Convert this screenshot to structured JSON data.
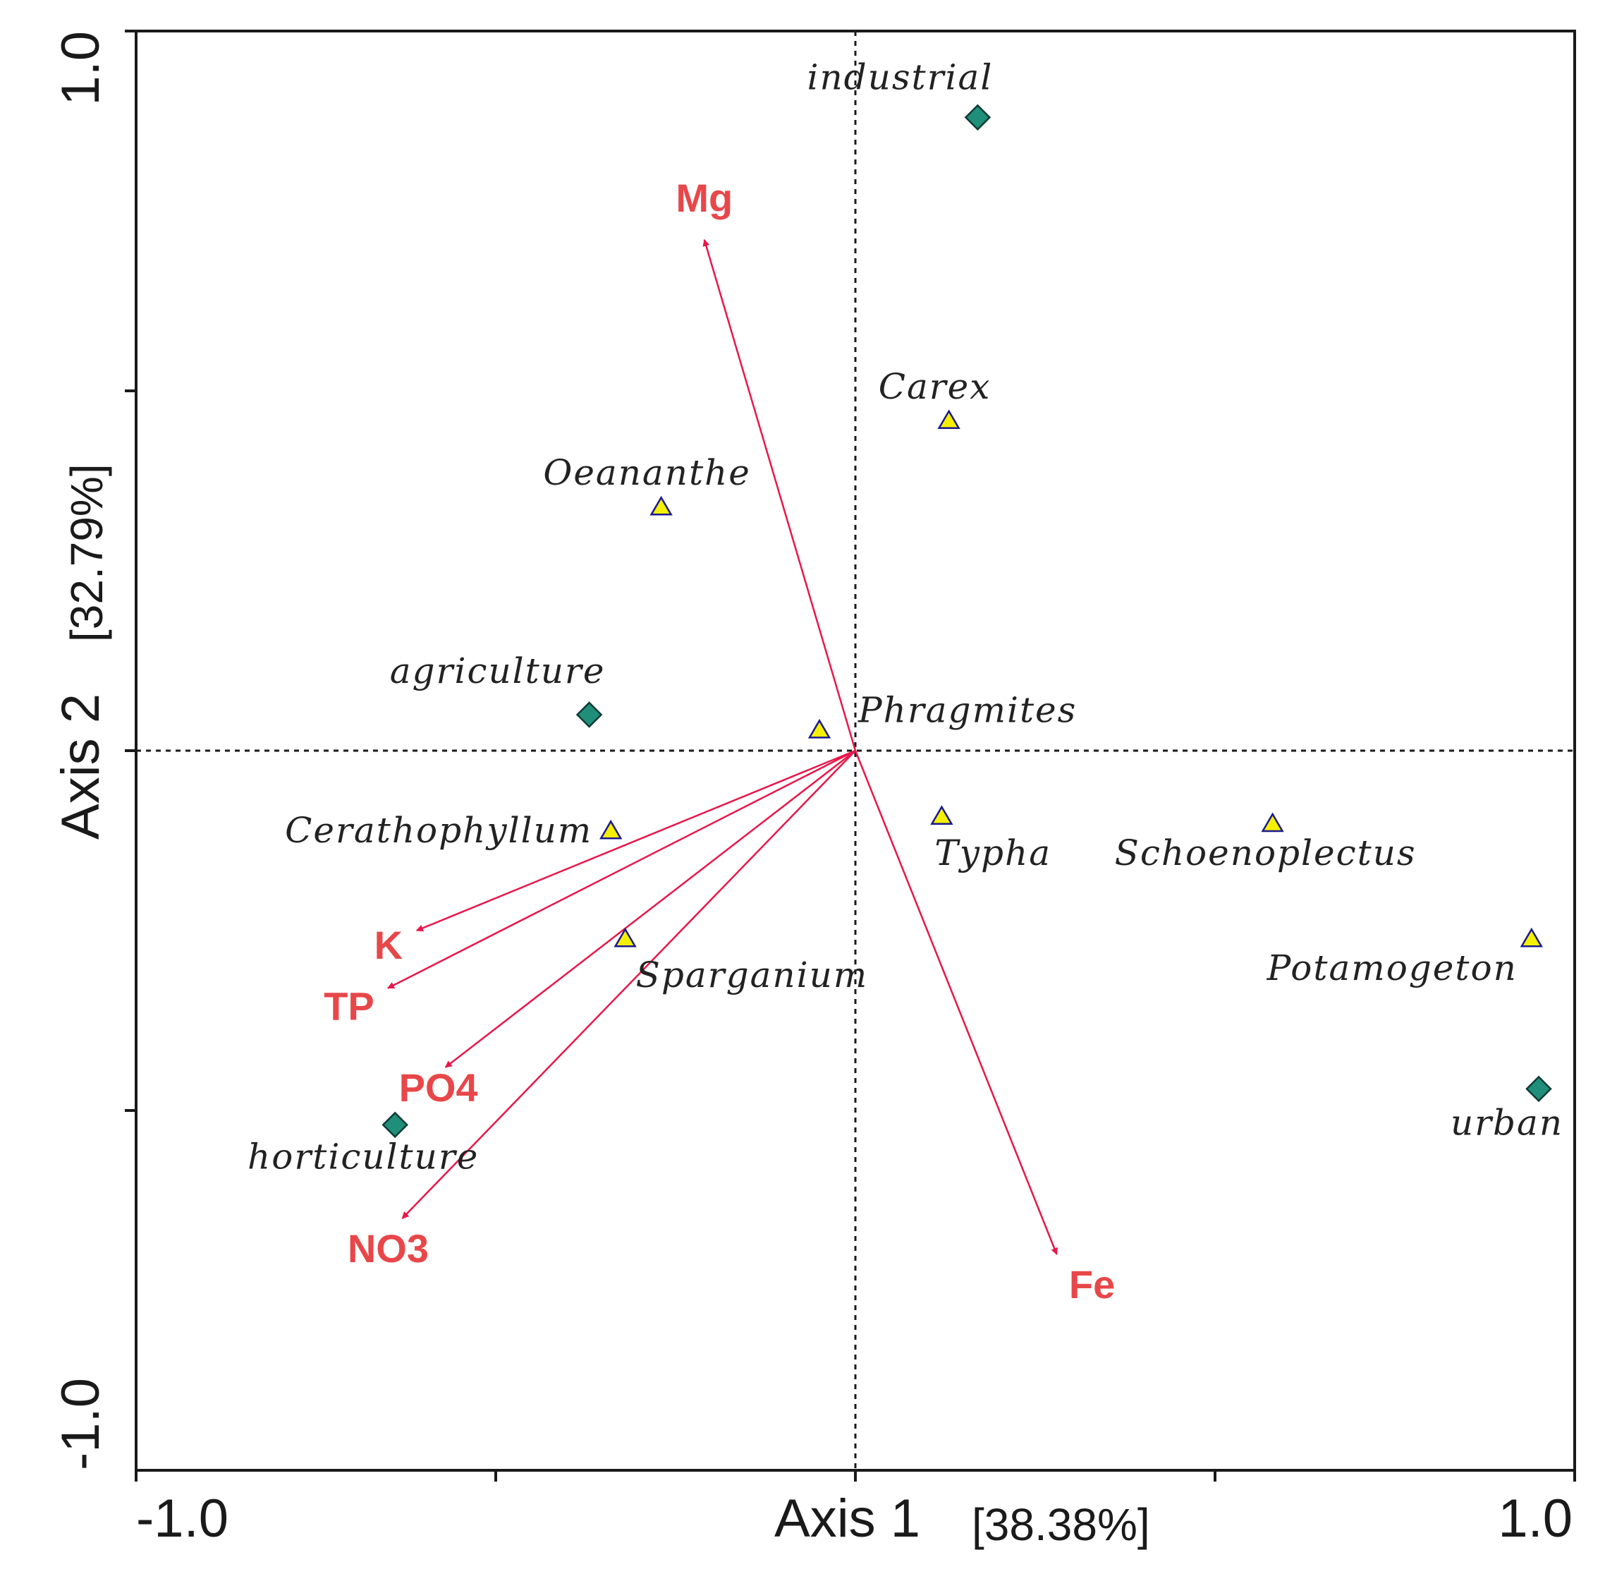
{
  "chart_data": {
    "type": "scatter",
    "subtype": "ordination-biplot",
    "xlabel": "Axis 1",
    "xlabel_pct": "[38.38%]",
    "ylabel": "Axis 2",
    "ylabel_pct": "[32.79%]",
    "xlim": [
      -1.0,
      1.0
    ],
    "ylim": [
      -1.0,
      1.0
    ],
    "x_tick_labels": [
      "-1.0",
      "1.0"
    ],
    "y_tick_labels": [
      "1.0",
      "-1.0"
    ],
    "zero_lines": "dashed",
    "colors": {
      "vector": "#e8174a",
      "vector_label": "#e8474a",
      "species_fill": "#f5f000",
      "species_stroke": "#1a1a8c",
      "landuse_fill": "#1f8f7a",
      "landuse_stroke": "#0d3b33",
      "axis": "#1a1a1a"
    },
    "species": [
      {
        "name": "Carex",
        "x": 0.13,
        "y": 0.46
      },
      {
        "name": "Oeananthe",
        "x": -0.27,
        "y": 0.34
      },
      {
        "name": "Phragmites",
        "x": -0.05,
        "y": 0.03
      },
      {
        "name": "Cerathophyllum",
        "x": -0.34,
        "y": -0.11
      },
      {
        "name": "Typha",
        "x": 0.12,
        "y": -0.09
      },
      {
        "name": "Schoenoplectus",
        "x": 0.58,
        "y": -0.1
      },
      {
        "name": "Sparganium",
        "x": -0.32,
        "y": -0.26
      },
      {
        "name": "Potamogeton",
        "x": 0.94,
        "y": -0.26
      }
    ],
    "landuse": [
      {
        "name": "industrial",
        "x": 0.17,
        "y": 0.88
      },
      {
        "name": "agriculture",
        "x": -0.37,
        "y": 0.05
      },
      {
        "name": "horticulture",
        "x": -0.64,
        "y": -0.52
      },
      {
        "name": "urban",
        "x": 0.95,
        "y": -0.47
      }
    ],
    "vectors": [
      {
        "name": "Mg",
        "x": -0.21,
        "y": 0.71
      },
      {
        "name": "K",
        "x": -0.61,
        "y": -0.25
      },
      {
        "name": "TP",
        "x": -0.65,
        "y": -0.33
      },
      {
        "name": "PO4",
        "x": -0.57,
        "y": -0.44
      },
      {
        "name": "NO3",
        "x": -0.63,
        "y": -0.65
      },
      {
        "name": "Fe",
        "x": 0.28,
        "y": -0.7
      }
    ]
  }
}
